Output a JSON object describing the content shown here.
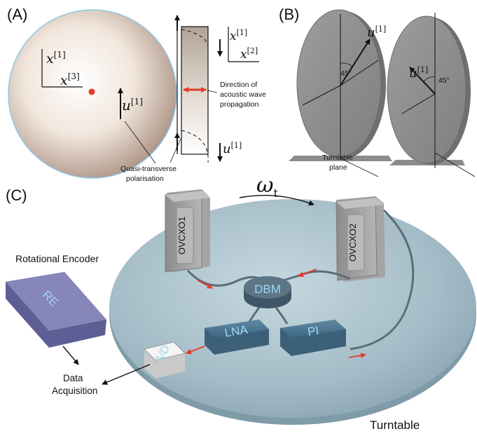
{
  "panels": {
    "a": "(A)",
    "b": "(B)",
    "c": "(C)"
  },
  "panel_a": {
    "axis_x1": "x",
    "axis_x1_sup": "[1]",
    "axis_x3": "x",
    "axis_x3_sup": "[3]",
    "polarisation_u": "u",
    "polarisation_u_sup": "[1]",
    "side_x1": "x",
    "side_x1_sup": "[1]",
    "side_x2": "x",
    "side_x2_sup": "[2]",
    "side_u": "u",
    "side_u_sup": "[1]",
    "acoustic_note": [
      "Direction of",
      "acoustic wave",
      "propagation"
    ],
    "quasi_note": [
      "Quasi-transverse",
      "polarisation"
    ]
  },
  "panel_b": {
    "left_u": "u",
    "left_u_sup": "[1]",
    "left_angle": "45°",
    "right_u": "u",
    "right_u_sup": "[1]",
    "right_angle": "45°",
    "turntable_note": [
      "Turntable",
      "plane"
    ]
  },
  "panel_c": {
    "omega": "ω",
    "omega_sub": "t",
    "ovcxo1": "OVCXO1",
    "ovcxo2": "OVCXO2",
    "dbm": "DBM",
    "lna": "LNA",
    "pi": "PI",
    "ad": "A/D",
    "re": "RE",
    "rotational_encoder": "Rotational Encoder",
    "data_acquisition": [
      "Data",
      "Acquisition"
    ],
    "turntable": "Turntable"
  },
  "colors": {
    "arrow_red": "#e63a28",
    "device_blue": "#4a7590",
    "label_cyan": "#9fd6f5",
    "turntable": "#9fb8c4",
    "encoder": "#8686b8"
  }
}
